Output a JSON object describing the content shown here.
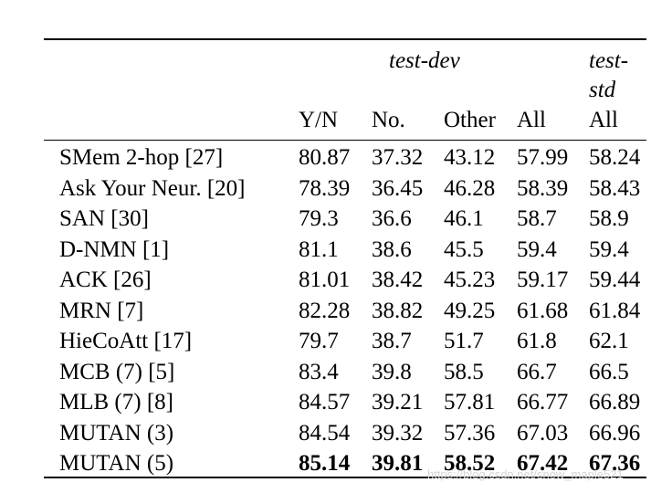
{
  "table": {
    "group_header": {
      "test_dev": "test-dev",
      "test_std_line1": "test-",
      "test_std_line2": "std"
    },
    "columns": [
      "Y/N",
      "No.",
      "Other",
      "All",
      "All"
    ],
    "rows": [
      {
        "method": "SMem 2-hop [27]",
        "values": [
          "80.87",
          "37.32",
          "43.12",
          "57.99",
          "58.24"
        ]
      },
      {
        "method": "Ask Your Neur. [20]",
        "values": [
          "78.39",
          "36.45",
          "46.28",
          "58.39",
          "58.43"
        ]
      },
      {
        "method": "SAN [30]",
        "values": [
          "79.3",
          "36.6",
          "46.1",
          "58.7",
          "58.9"
        ]
      },
      {
        "method": "D-NMN [1]",
        "values": [
          "81.1",
          "38.6",
          "45.5",
          "59.4",
          "59.4"
        ]
      },
      {
        "method": "ACK [26]",
        "values": [
          "81.01",
          "38.42",
          "45.23",
          "59.17",
          "59.44"
        ]
      },
      {
        "method": "MRN [7]",
        "values": [
          "82.28",
          "38.82",
          "49.25",
          "61.68",
          "61.84"
        ]
      },
      {
        "method": "HieCoAtt [17]",
        "values": [
          "79.7",
          "38.7",
          "51.7",
          "61.8",
          "62.1"
        ]
      },
      {
        "method": "MCB (7) [5]",
        "values": [
          "83.4",
          "39.8",
          "58.5",
          "66.7",
          "66.5"
        ]
      },
      {
        "method": "MLB (7) [8]",
        "values": [
          "84.57",
          "39.21",
          "57.81",
          "66.77",
          "66.89"
        ]
      },
      {
        "method": "MUTAN (3)",
        "values": [
          "84.54",
          "39.32",
          "57.36",
          "67.03",
          "66.96"
        ]
      },
      {
        "method": "MUTAN (5)",
        "values": [
          "85.14",
          "39.81",
          "58.52",
          "67.42",
          "67.36"
        ],
        "bold": true
      }
    ]
  },
  "watermark": "https://blog.csdn.net/snow_maple521"
}
